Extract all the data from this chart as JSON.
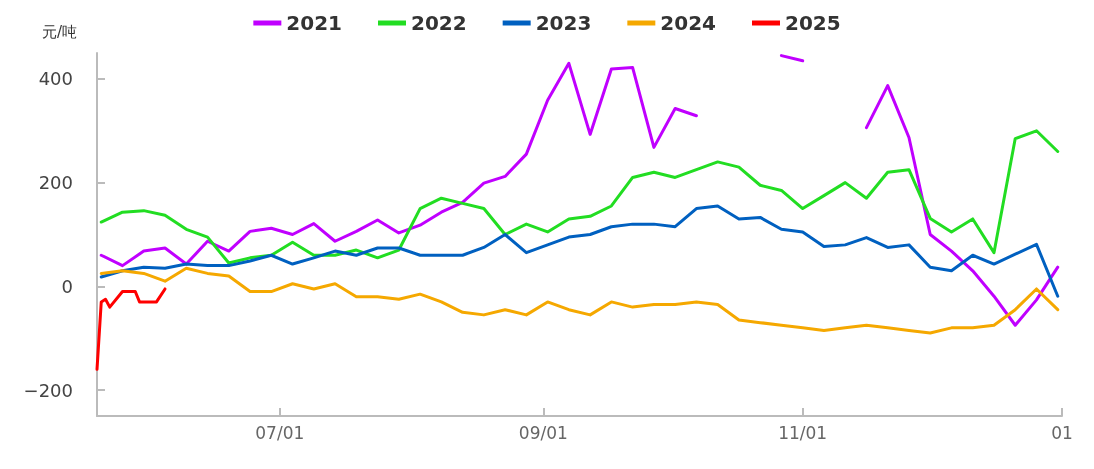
{
  "chart_data": {
    "type": "line",
    "ylabel": "元/吨",
    "x": [
      "2024-05-20",
      "2024-05-25",
      "2024-05-30",
      "2024-06-04",
      "2024-06-09",
      "2024-06-14",
      "2024-06-19",
      "2024-06-24",
      "2024-06-29",
      "2024-07-04",
      "2024-07-09",
      "2024-07-14",
      "2024-07-19",
      "2024-07-24",
      "2024-07-29",
      "2024-08-03",
      "2024-08-08",
      "2024-08-13",
      "2024-08-18",
      "2024-08-23",
      "2024-08-28",
      "2024-09-02",
      "2024-09-07",
      "2024-09-12",
      "2024-09-17",
      "2024-09-22",
      "2024-09-27",
      "2024-10-02",
      "2024-10-07",
      "2024-10-12",
      "2024-10-17",
      "2024-10-22",
      "2024-10-27",
      "2024-11-01",
      "2024-11-06",
      "2024-11-11",
      "2024-11-16",
      "2024-11-21",
      "2024-11-26",
      "2024-12-01",
      "2024-12-06",
      "2024-12-11",
      "2024-12-16",
      "2024-12-21",
      "2024-12-26",
      "2024-12-31"
    ],
    "xlim": [
      "2024-05-19",
      "2025-01-01"
    ],
    "xticks": [
      {
        "value": "2024-07-01",
        "label": "07/01"
      },
      {
        "value": "2024-09-01",
        "label": "09/01"
      },
      {
        "value": "2024-11-01",
        "label": "11/01"
      },
      {
        "value": "2025-01-01",
        "label": "01"
      }
    ],
    "ylim": [
      -250,
      450
    ],
    "yticks": [
      -200,
      0,
      200,
      400
    ],
    "grid": false,
    "legend": "top",
    "marker": "none",
    "line_style": "solid",
    "series": [
      {
        "name": "2021",
        "color": "#c000ff",
        "values": [
          60,
          40,
          68,
          74,
          43,
          87,
          68,
          106,
          112,
          100,
          121,
          87,
          106,
          128,
          103,
          118,
          143,
          162,
          199,
          212,
          255,
          359,
          430,
          293,
          419,
          422,
          268,
          343,
          329,
          null,
          null,
          null,
          445,
          435,
          null,
          null,
          306,
          387,
          287,
          100,
          68,
          30,
          -19,
          -75,
          -26,
          37
        ]
      },
      {
        "name": "2022",
        "color": "#22dd22",
        "values": [
          124,
          143,
          146,
          137,
          110,
          95,
          45,
          55,
          60,
          85,
          60,
          60,
          70,
          55,
          70,
          150,
          170,
          160,
          150,
          100,
          120,
          105,
          130,
          135,
          155,
          210,
          220,
          210,
          225,
          240,
          230,
          195,
          185,
          150,
          175,
          200,
          170,
          220,
          225,
          131,
          105,
          130,
          65,
          285,
          300,
          260
        ]
      },
      {
        "name": "2023",
        "color": "#0060c0",
        "values": [
          18,
          30,
          37,
          35,
          43,
          40,
          40,
          49,
          60,
          43,
          55,
          68,
          60,
          74,
          74,
          60,
          60,
          60,
          75,
          100,
          65,
          80,
          95,
          100,
          115,
          120,
          120,
          115,
          150,
          155,
          130,
          133,
          110,
          105,
          77,
          80,
          94,
          75,
          80,
          37,
          30,
          60,
          43,
          62,
          81,
          -19
        ]
      },
      {
        "name": "2024",
        "color": "#f5a800",
        "values": [
          25,
          30,
          25,
          10,
          35,
          25,
          20,
          -10,
          -10,
          5,
          -5,
          5,
          -20,
          -20,
          -25,
          -15,
          -30,
          -50,
          -55,
          -45,
          -55,
          -30,
          -45,
          -55,
          -30,
          -40,
          -35,
          -35,
          -30,
          -35,
          -65,
          -70,
          -75,
          -80,
          -85,
          -80,
          -75,
          -80,
          -85,
          -90,
          -80,
          -80,
          -75,
          -45,
          -5,
          -45
        ]
      },
      {
        "name": "2025",
        "color": "#ff0000",
        "x": [
          "2024-05-19",
          "2024-05-20",
          "2024-05-21",
          "2024-05-22",
          "2024-05-25",
          "2024-05-28",
          "2024-05-29",
          "2024-06-02",
          "2024-06-04"
        ],
        "values": [
          -160,
          -30,
          -25,
          -40,
          -10,
          -10,
          -30,
          -30,
          -5
        ]
      }
    ]
  }
}
